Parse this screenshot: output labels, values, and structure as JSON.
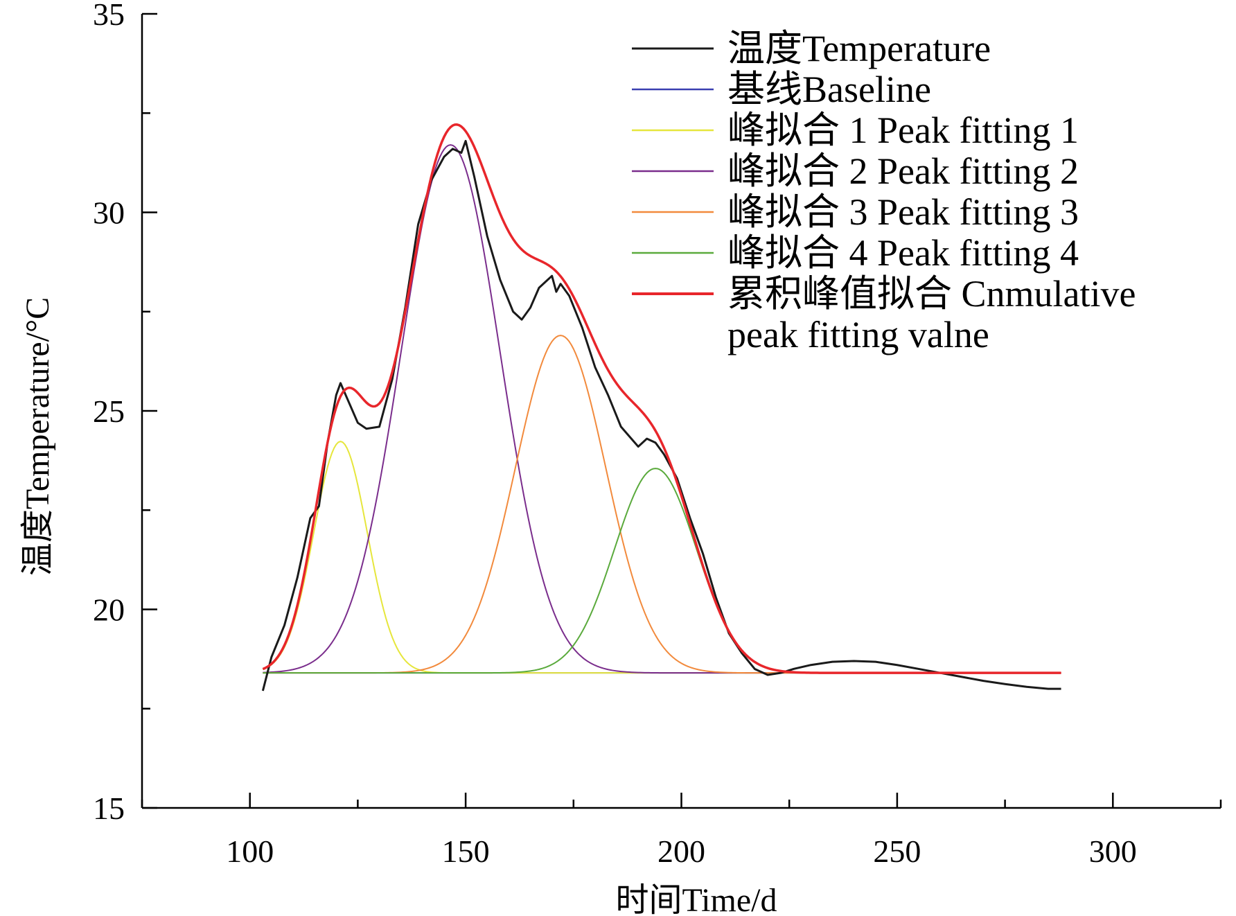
{
  "chart_data": {
    "type": "line",
    "xlabel": "时间Time/d",
    "ylabel": "温度Temperature/°C",
    "xlim": [
      75,
      325
    ],
    "ylim": [
      15,
      35
    ],
    "xticks": [
      100,
      150,
      200,
      250,
      300
    ],
    "yticks": [
      15,
      20,
      25,
      30,
      35
    ],
    "legend_position": "top-right",
    "series": [
      {
        "name": "温度Temperature",
        "color": "#1a1a1a",
        "x": [
          103,
          105,
          108,
          111,
          114,
          116,
          118,
          120,
          121,
          123,
          125,
          127,
          130,
          133,
          136,
          139,
          142,
          145,
          147,
          149,
          150,
          152,
          155,
          158,
          161,
          163,
          165,
          167,
          169,
          170,
          171,
          172,
          174,
          177,
          180,
          183,
          186,
          190,
          192,
          194,
          196,
          199,
          202,
          205,
          208,
          211,
          214,
          217,
          220,
          223,
          226,
          230,
          235,
          240,
          245,
          250,
          255,
          260,
          265,
          270,
          275,
          280,
          285,
          288
        ],
        "y": [
          17.95,
          18.8,
          19.6,
          20.8,
          22.3,
          22.6,
          24.2,
          25.4,
          25.7,
          25.2,
          24.7,
          24.55,
          24.6,
          25.8,
          27.6,
          29.7,
          30.8,
          31.4,
          31.6,
          31.5,
          31.8,
          30.9,
          29.4,
          28.3,
          27.5,
          27.3,
          27.6,
          28.1,
          28.3,
          28.4,
          28.0,
          28.2,
          27.9,
          27.1,
          26.1,
          25.4,
          24.6,
          24.1,
          24.3,
          24.2,
          23.9,
          23.3,
          22.3,
          21.4,
          20.3,
          19.4,
          18.9,
          18.5,
          18.35,
          18.4,
          18.5,
          18.6,
          18.68,
          18.7,
          18.68,
          18.6,
          18.5,
          18.4,
          18.3,
          18.2,
          18.12,
          18.05,
          18.0,
          18.0
        ]
      },
      {
        "name": "基线Baseline",
        "color": "#3a3fb0",
        "x": [
          103,
          288
        ],
        "y": [
          18.4,
          18.4
        ]
      },
      {
        "name": "峰拟合 1 Peak fitting 1",
        "color": "#e6e63c",
        "gaussian": {
          "baseline": 18.4,
          "amplitude": 5.83,
          "center": 121,
          "sigma": 6.2
        },
        "x_range": [
          103,
          288
        ]
      },
      {
        "name": "峰拟合 2 Peak fitting 2",
        "color": "#7a2d8c",
        "gaussian": {
          "baseline": 18.4,
          "amplitude": 13.3,
          "center": 146.5,
          "sigma": 11.5
        },
        "x_range": [
          103,
          288
        ]
      },
      {
        "name": "峰拟合 3 Peak fitting 3",
        "color": "#f28a3c",
        "gaussian": {
          "baseline": 18.4,
          "amplitude": 8.5,
          "center": 172,
          "sigma": 10.5
        },
        "x_range": [
          103,
          288
        ]
      },
      {
        "name": "峰拟合 4 Peak fitting 4",
        "color": "#5aaa3c",
        "gaussian": {
          "baseline": 18.4,
          "amplitude": 5.15,
          "center": 194,
          "sigma": 9.5
        },
        "x_range": [
          103,
          288
        ]
      },
      {
        "name": "累积峰值拟合 Cnmulative peak fitting valne",
        "color": "#e8262b",
        "cumulative": true,
        "x_range": [
          103,
          288
        ]
      }
    ],
    "legend": [
      {
        "label": "温度Temperature",
        "color": "#1a1a1a"
      },
      {
        "label": "基线Baseline",
        "color": "#3a3fb0"
      },
      {
        "label": "峰拟合 1 Peak fitting 1",
        "color": "#e6e63c"
      },
      {
        "label": "峰拟合 2 Peak fitting 2",
        "color": "#7a2d8c"
      },
      {
        "label": "峰拟合 3 Peak fitting 3",
        "color": "#f28a3c"
      },
      {
        "label": "峰拟合 4 Peak fitting 4",
        "color": "#5aaa3c"
      },
      {
        "label": "累积峰值拟合 Cnmulative",
        "label2": "peak fitting valne",
        "color": "#e8262b"
      }
    ]
  }
}
